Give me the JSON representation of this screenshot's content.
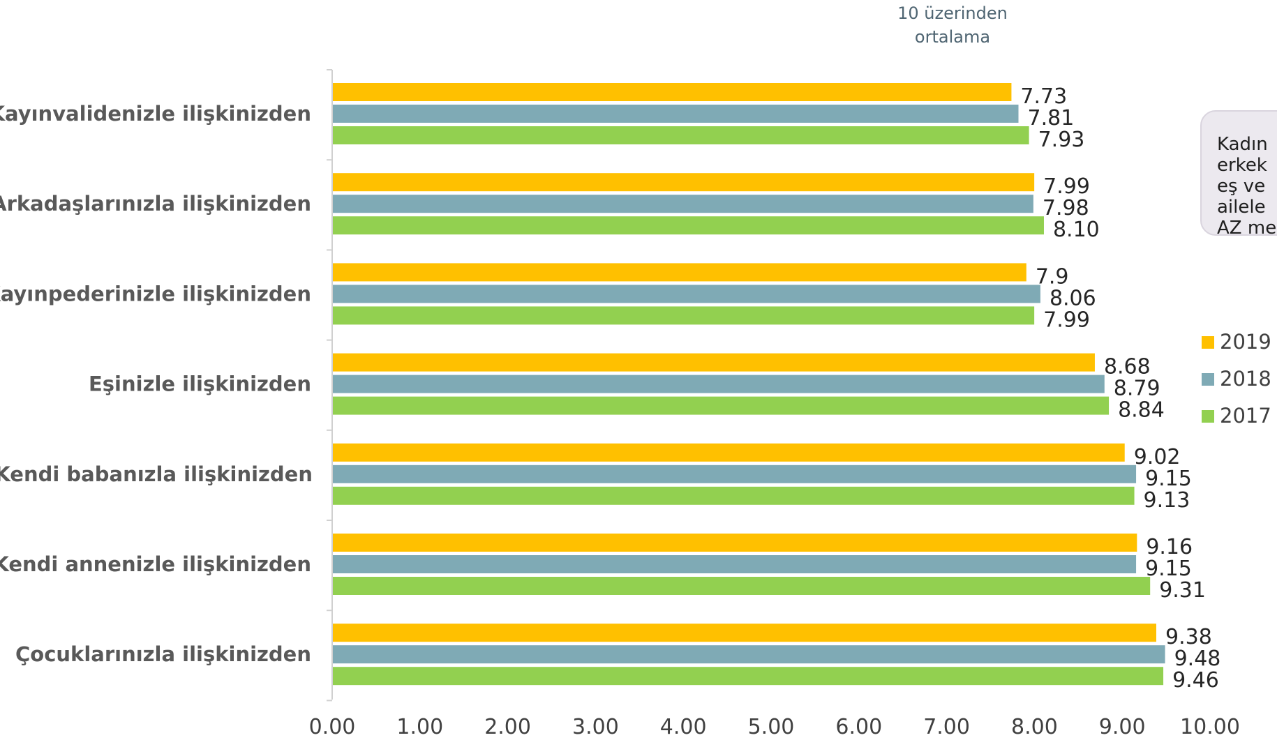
{
  "note": {
    "line1": "10 üzerinden",
    "line2": "ortalama"
  },
  "callout": {
    "lines": [
      "Kadın",
      "erkek",
      "eş ve",
      "ailele",
      "AZ me"
    ]
  },
  "colors": {
    "y2019": "#ffc000",
    "y2018": "#7faab5",
    "y2017": "#92d050"
  },
  "chart_data": {
    "type": "bar",
    "orientation": "horizontal",
    "categories": [
      "Kayınvalidenizle ilişkinizden",
      "Arkadaşlarınızla ilişkinizden",
      "Kayınpederinizle ilişkinizden",
      "Eşinizle ilişkinizden",
      "Kendi babanızla ilişkinizden",
      "Kendi annenizle ilişkinizden",
      "Çocuklarınızla ilişkinizden"
    ],
    "series": [
      {
        "name": "2019",
        "color": "#ffc000",
        "values": [
          7.73,
          7.99,
          7.9,
          8.68,
          9.02,
          9.16,
          9.38
        ],
        "labels": [
          "7.73",
          "7.99",
          "7.9",
          "8.68",
          "9.02",
          "9.16",
          "9.38"
        ]
      },
      {
        "name": "2018",
        "color": "#7faab5",
        "values": [
          7.81,
          7.98,
          8.06,
          8.79,
          9.15,
          9.15,
          9.48
        ],
        "labels": [
          "7.81",
          "7.98",
          "8.06",
          "8.79",
          "9.15",
          "9.15",
          "9.48"
        ]
      },
      {
        "name": "2017",
        "color": "#92d050",
        "values": [
          7.93,
          8.1,
          7.99,
          8.84,
          9.13,
          9.31,
          9.46
        ],
        "labels": [
          "7.93",
          "8.10",
          "7.99",
          "8.84",
          "9.13",
          "9.31",
          "9.46"
        ]
      }
    ],
    "xlim": [
      0,
      10
    ],
    "xticks": [
      "0.00",
      "1.00",
      "2.00",
      "3.00",
      "4.00",
      "5.00",
      "6.00",
      "7.00",
      "8.00",
      "9.00",
      "10.00"
    ],
    "grid": false,
    "legend_position": "right"
  }
}
